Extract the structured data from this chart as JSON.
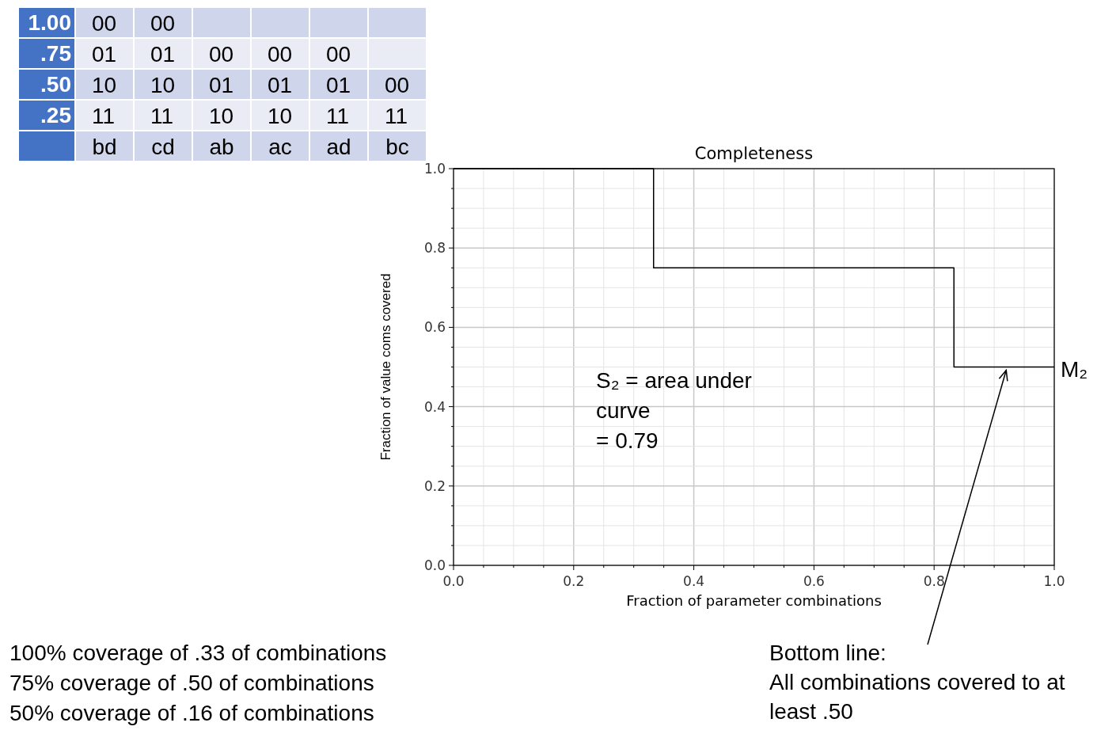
{
  "chart_data": [
    {
      "type": "heatmap",
      "categories": [
        "bd",
        "cd",
        "ab",
        "ac",
        "ad",
        "bc"
      ],
      "y_categories": [
        "1.00",
        ".75",
        ".50",
        ".25"
      ],
      "cells": [
        [
          null,
          null,
          null,
          null,
          null,
          null
        ],
        [
          null,
          null,
          null,
          null,
          null,
          null
        ],
        [
          null,
          null,
          null,
          null,
          null,
          null
        ],
        [
          null,
          null,
          null,
          null,
          null,
          null
        ]
      ],
      "cell_labels": [
        [
          "00",
          "00",
          null,
          null,
          null,
          null
        ],
        [
          "01",
          "01",
          "00",
          "00",
          "00",
          null
        ],
        [
          "10",
          "10",
          "01",
          "01",
          "01",
          "00"
        ],
        [
          "11",
          "11",
          "10",
          "10",
          "11",
          "11"
        ]
      ]
    },
    {
      "type": "step",
      "title": "Completeness",
      "xlabel": "Fraction of parameter combinations",
      "ylabel": "Fraction of value coms covered",
      "x": [
        0,
        0.333,
        0.833,
        1.0
      ],
      "series": [
        {
          "color": "#000000",
          "values": [
            1.0,
            0.75,
            0.5,
            0.5
          ]
        }
      ],
      "xlim": [
        0,
        1
      ],
      "ylim": [
        0,
        1
      ],
      "xticks": [
        {
          "value": 0,
          "label": "0.0"
        },
        {
          "value": 0.05,
          "label": null
        },
        {
          "value": 0.1,
          "label": null
        },
        {
          "value": 0.15,
          "label": null
        },
        0.2,
        {
          "value": 0.25,
          "label": null
        },
        {
          "value": 0.3,
          "label": null
        },
        {
          "value": 0.35,
          "label": null
        },
        0.4,
        {
          "value": 0.45,
          "label": null
        },
        {
          "value": 0.5,
          "label": null
        },
        {
          "value": 0.55,
          "label": null
        },
        0.6,
        {
          "value": 0.65,
          "label": null
        },
        {
          "value": 0.7,
          "label": null
        },
        {
          "value": 0.75,
          "label": null
        },
        0.8,
        {
          "value": 0.85,
          "label": null
        },
        {
          "value": 0.9,
          "label": null
        },
        {
          "value": 0.95,
          "label": null
        },
        {
          "value": 1,
          "label": "1.0"
        }
      ],
      "yticks": [
        {
          "value": 0,
          "label": "0.0"
        },
        {
          "value": 0.05,
          "label": null
        },
        {
          "value": 0.1,
          "label": null
        },
        {
          "value": 0.15,
          "label": null
        },
        0.2,
        {
          "value": 0.25,
          "label": null
        },
        {
          "value": 0.3,
          "label": null
        },
        {
          "value": 0.35,
          "label": null
        },
        0.4,
        {
          "value": 0.45,
          "label": null
        },
        {
          "value": 0.5,
          "label": null
        },
        {
          "value": 0.55,
          "label": null
        },
        0.6,
        {
          "value": 0.65,
          "label": null
        },
        {
          "value": 0.7,
          "label": null
        },
        {
          "value": 0.75,
          "label": null
        },
        0.8,
        {
          "value": 0.85,
          "label": null
        },
        {
          "value": 0.9,
          "label": null
        },
        {
          "value": 0.95,
          "label": null
        },
        {
          "value": 1,
          "label": "1.0"
        }
      ],
      "grid": true,
      "annotations": [
        {
          "text": "M₂",
          "x": 1.0,
          "y": 0.5
        },
        {
          "text": "Bottom line: All combinations covered to at least .50",
          "x": 0.92,
          "y": 0.5
        },
        "S₂ = area under curve = 0.79",
        "100% coverage of .33 of combinations",
        "75% coverage of .50 of combinations",
        "50% coverage of .16 of combinations"
      ]
    }
  ]
}
